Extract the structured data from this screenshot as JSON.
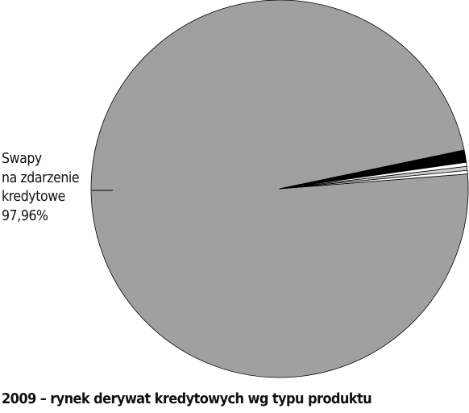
{
  "chart_data": {
    "type": "pie",
    "title": "2009 – rynek derywat kredytowych wg typu produktu",
    "slices": [
      {
        "label_lines": [
          "Swapy",
          "na zdarzenie",
          "kredytowe"
        ],
        "value_text": "97,96%",
        "value": 97.96,
        "color": "#a0a0a0"
      },
      {
        "label_lines": [],
        "value_text": "",
        "value": 1.05,
        "color": "#000000"
      },
      {
        "label_lines": [],
        "value_text": "",
        "value": 0.35,
        "color": "#ffffff"
      },
      {
        "label_lines": [],
        "value_text": "",
        "value": 0.34,
        "color": "#cfcfcf"
      },
      {
        "label_lines": [],
        "value_text": "",
        "value": 0.3,
        "color": "#ffffff"
      }
    ],
    "legend": "none",
    "outline_color": "#000000"
  }
}
